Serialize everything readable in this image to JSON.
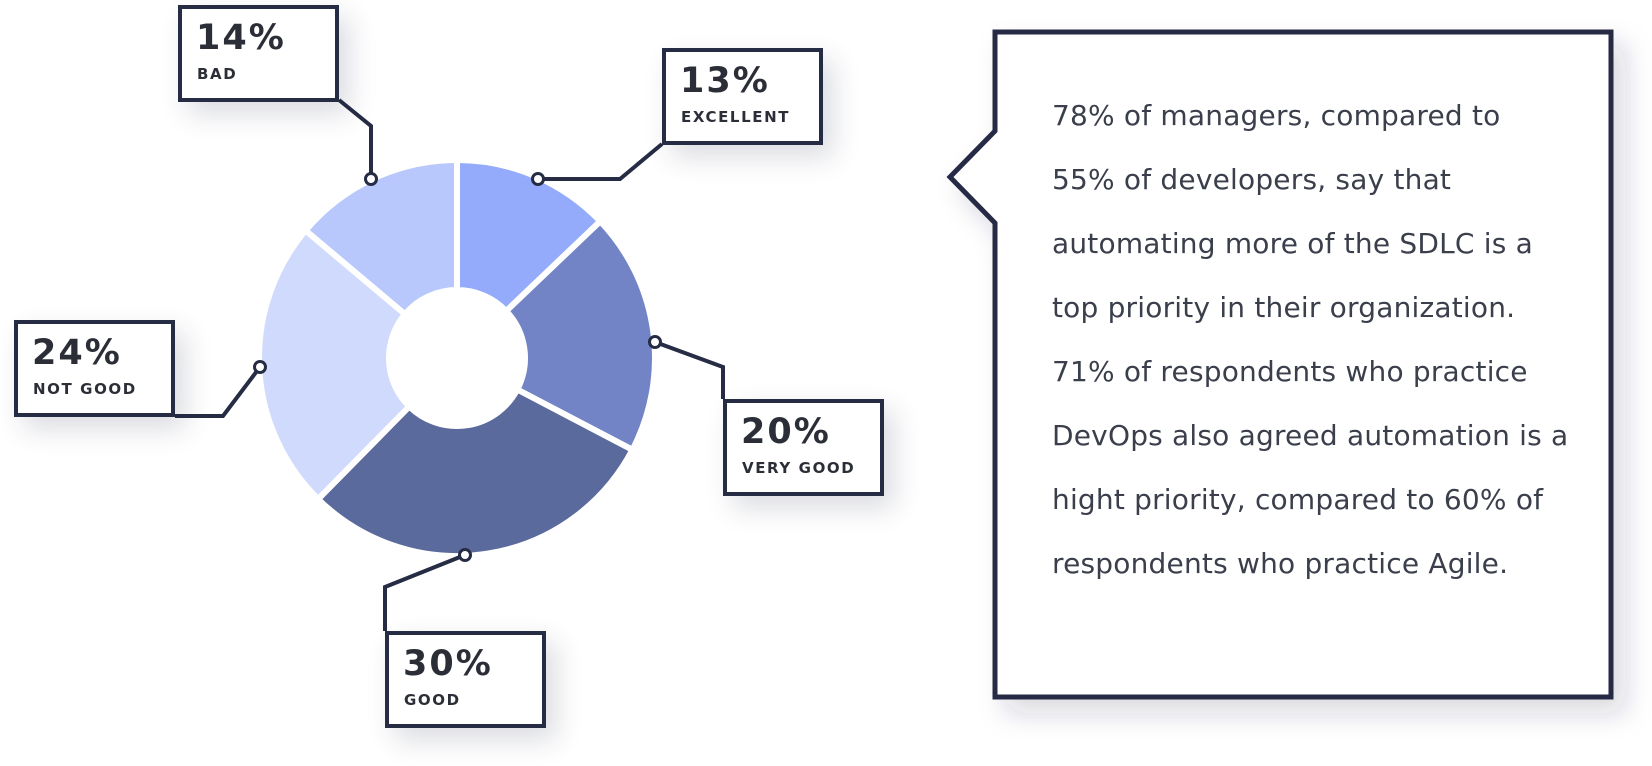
{
  "chart_data": {
    "type": "pie",
    "variant": "donut",
    "start_category": "EXCELLENT",
    "direction": "clockwise",
    "categories": [
      "EXCELLENT",
      "VERY GOOD",
      "GOOD",
      "NOT GOOD",
      "BAD"
    ],
    "values": [
      13,
      20,
      30,
      24,
      14
    ],
    "value_labels": [
      "13%",
      "20%",
      "30%",
      "24%",
      "14%"
    ],
    "colors": [
      "#94aafa",
      "#7284c6",
      "#5b6a9c",
      "#d0dafd",
      "#b8c7fc"
    ],
    "legend": "callout-labels"
  },
  "callout": {
    "text": "78% of managers, compared to 55% of developers, say that automating more of the SDLC is a top priority in their organization. 71% of respondents who practice DevOps also agreed automation is a hight priority, compared to 60% of respondents who practice Agile."
  }
}
